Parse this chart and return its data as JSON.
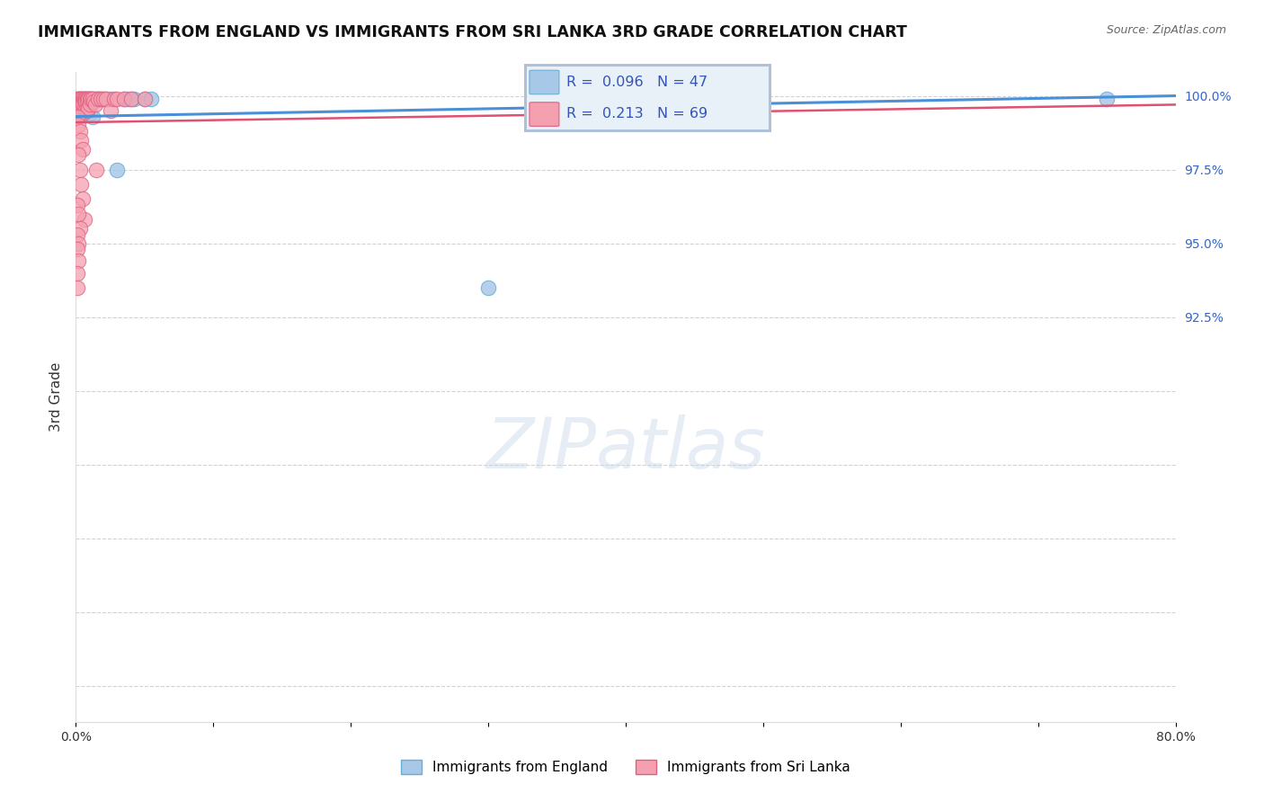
{
  "title": "IMMIGRANTS FROM ENGLAND VS IMMIGRANTS FROM SRI LANKA 3RD GRADE CORRELATION CHART",
  "source": "Source: ZipAtlas.com",
  "ylabel": "3rd Grade",
  "xlim": [
    0.0,
    0.8
  ],
  "ylim": [
    0.788,
    1.008
  ],
  "xticks": [
    0.0,
    0.1,
    0.2,
    0.3,
    0.4,
    0.5,
    0.6,
    0.7,
    0.8
  ],
  "xticklabels": [
    "0.0%",
    "",
    "",
    "",
    "",
    "",
    "",
    "",
    "80.0%"
  ],
  "yticks": [
    0.8,
    0.825,
    0.85,
    0.875,
    0.9,
    0.925,
    0.95,
    0.975,
    1.0
  ],
  "yticklabels": [
    "",
    "",
    "",
    "",
    "",
    "92.5%",
    "95.0%",
    "97.5%",
    "100.0%"
  ],
  "england_color": "#a8c8e8",
  "england_edge": "#6aaed6",
  "srilanka_color": "#f4a0b0",
  "srilanka_edge": "#e06080",
  "trend_england_color": "#4a90d9",
  "trend_srilanka_color": "#e05070",
  "R_england": 0.096,
  "N_england": 47,
  "R_srilanka": 0.213,
  "N_srilanka": 69,
  "england_x": [
    0.002,
    0.003,
    0.003,
    0.004,
    0.004,
    0.004,
    0.004,
    0.005,
    0.005,
    0.006,
    0.006,
    0.006,
    0.007,
    0.007,
    0.007,
    0.008,
    0.008,
    0.009,
    0.009,
    0.01,
    0.01,
    0.011,
    0.011,
    0.012,
    0.013,
    0.014,
    0.015,
    0.016,
    0.017,
    0.018,
    0.02,
    0.022,
    0.025,
    0.03,
    0.035,
    0.038,
    0.04,
    0.042,
    0.05,
    0.055,
    0.003,
    0.005,
    0.008,
    0.01,
    0.012,
    0.75,
    0.3
  ],
  "england_y": [
    0.999,
    0.999,
    0.998,
    0.999,
    0.999,
    0.998,
    0.997,
    0.999,
    0.998,
    0.999,
    0.998,
    0.997,
    0.999,
    0.999,
    0.998,
    0.999,
    0.998,
    0.999,
    0.998,
    0.999,
    0.998,
    0.999,
    0.998,
    0.999,
    0.999,
    0.999,
    0.999,
    0.999,
    0.999,
    0.999,
    0.999,
    0.999,
    0.999,
    0.975,
    0.999,
    0.999,
    0.999,
    0.999,
    0.999,
    0.999,
    0.997,
    0.996,
    0.995,
    0.994,
    0.993,
    0.999,
    0.935
  ],
  "srilanka_x": [
    0.001,
    0.001,
    0.001,
    0.001,
    0.001,
    0.002,
    0.002,
    0.002,
    0.002,
    0.003,
    0.003,
    0.003,
    0.003,
    0.003,
    0.004,
    0.004,
    0.004,
    0.004,
    0.005,
    0.005,
    0.005,
    0.005,
    0.006,
    0.006,
    0.006,
    0.007,
    0.007,
    0.007,
    0.008,
    0.008,
    0.008,
    0.009,
    0.009,
    0.01,
    0.01,
    0.011,
    0.012,
    0.013,
    0.014,
    0.015,
    0.016,
    0.018,
    0.02,
    0.022,
    0.025,
    0.028,
    0.03,
    0.035,
    0.04,
    0.05,
    0.001,
    0.002,
    0.003,
    0.004,
    0.005,
    0.002,
    0.003,
    0.004,
    0.005,
    0.006,
    0.001,
    0.002,
    0.003,
    0.001,
    0.002,
    0.001,
    0.002,
    0.001,
    0.001
  ],
  "srilanka_y": [
    0.999,
    0.999,
    0.998,
    0.997,
    0.996,
    0.999,
    0.998,
    0.997,
    0.995,
    0.999,
    0.998,
    0.997,
    0.996,
    0.994,
    0.999,
    0.998,
    0.997,
    0.995,
    0.999,
    0.998,
    0.997,
    0.994,
    0.999,
    0.998,
    0.996,
    0.999,
    0.998,
    0.995,
    0.999,
    0.998,
    0.995,
    0.999,
    0.996,
    0.999,
    0.997,
    0.999,
    0.999,
    0.998,
    0.997,
    0.975,
    0.999,
    0.999,
    0.999,
    0.999,
    0.995,
    0.999,
    0.999,
    0.999,
    0.999,
    0.999,
    0.993,
    0.99,
    0.988,
    0.985,
    0.982,
    0.98,
    0.975,
    0.97,
    0.965,
    0.958,
    0.963,
    0.96,
    0.955,
    0.953,
    0.95,
    0.948,
    0.944,
    0.94,
    0.935
  ],
  "watermark": "ZIPatlas",
  "background_color": "#ffffff",
  "grid_color": "#c0c8d8",
  "legend_box_color": "#e8f0f8",
  "legend_box_edge": "#b0c0d8"
}
